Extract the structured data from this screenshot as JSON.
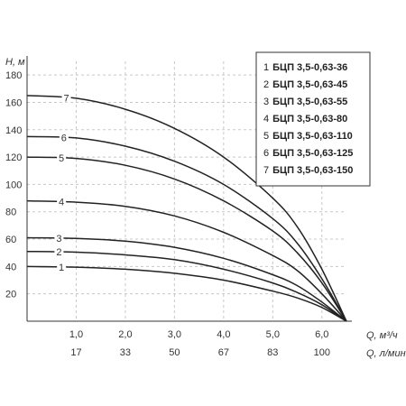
{
  "chart_data": {
    "type": "line",
    "xlabel": "Q, м³/ч",
    "xlabel2": "Q, л/мин",
    "ylabel": "H, м",
    "xlim": [
      0,
      6.5
    ],
    "ylim": [
      0,
      190
    ],
    "grid": true,
    "legend_position": "top-right",
    "x_ticks": [
      "1,0",
      "2,0",
      "3,0",
      "4,0",
      "5,0",
      "6,0"
    ],
    "x_ticks2": [
      "17",
      "33",
      "50",
      "67",
      "83",
      "100"
    ],
    "y_ticks": [
      "20",
      "40",
      "60",
      "80",
      "100",
      "120",
      "140",
      "160",
      "180"
    ],
    "legend": [
      {
        "num": "1",
        "name": "БЦП 3,5-0,63-36"
      },
      {
        "num": "2",
        "name": "БЦП 3,5-0,63-45"
      },
      {
        "num": "3",
        "name": "БЦП 3,5-0,63-55"
      },
      {
        "num": "4",
        "name": "БЦП 3,5-0,63-80"
      },
      {
        "num": "5",
        "name": "БЦП 3,5-0,63-110"
      },
      {
        "num": "6",
        "name": "БЦП 3,5-0,63-125"
      },
      {
        "num": "7",
        "name": "БЦП 3,5-0,63-150"
      }
    ],
    "series": [
      {
        "name": "1",
        "x": [
          0,
          1,
          2,
          3,
          4,
          5,
          5.5,
          6,
          6.5
        ],
        "y": [
          40,
          39.5,
          38,
          35,
          30,
          22,
          17,
          10,
          0
        ]
      },
      {
        "name": "2",
        "x": [
          0,
          1,
          2,
          3,
          4,
          5,
          5.5,
          6,
          6.5
        ],
        "y": [
          51,
          50.5,
          48.5,
          45,
          38,
          28,
          21,
          12,
          0
        ]
      },
      {
        "name": "3",
        "x": [
          0,
          1,
          2,
          3,
          4,
          5,
          5.5,
          6,
          6.5
        ],
        "y": [
          61,
          60.5,
          58.5,
          54,
          46,
          34,
          26,
          14,
          0
        ]
      },
      {
        "name": "4",
        "x": [
          0,
          1,
          2,
          3,
          4,
          5,
          5.5,
          6,
          6.5
        ],
        "y": [
          88,
          87,
          84,
          77,
          65,
          48,
          37,
          20,
          0
        ]
      },
      {
        "name": "5",
        "x": [
          0,
          1,
          2,
          3,
          4,
          5,
          5.5,
          6,
          6.5
        ],
        "y": [
          120,
          119,
          114,
          104,
          88,
          66,
          50,
          28,
          0
        ]
      },
      {
        "name": "6",
        "x": [
          0,
          1,
          2,
          3,
          4,
          5,
          5.5,
          6,
          6.5
        ],
        "y": [
          135,
          134,
          128,
          117,
          100,
          75,
          57,
          31,
          0
        ]
      },
      {
        "name": "7",
        "x": [
          0,
          1,
          2,
          3,
          4,
          5,
          5.5,
          6,
          6.5
        ],
        "y": [
          165,
          163,
          155,
          141,
          120,
          90,
          69,
          38,
          0
        ]
      }
    ],
    "curve_label_x": [
      0.7,
      0.65,
      0.65,
      0.7,
      0.7,
      0.75,
      0.8
    ]
  }
}
